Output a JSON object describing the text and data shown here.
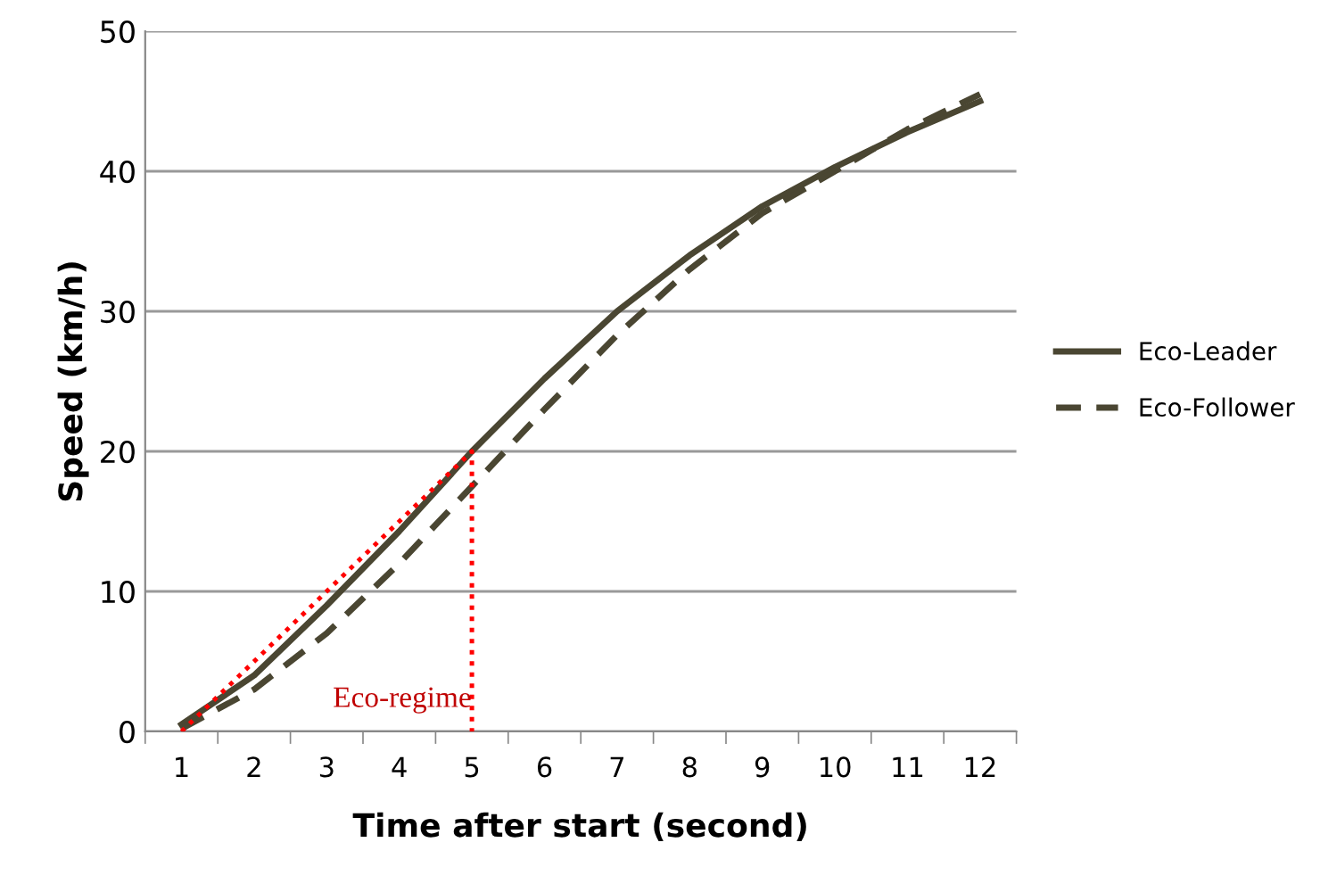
{
  "chart_data": {
    "type": "line",
    "xlabel": "Time after start (second)",
    "ylabel": "Speed (km/h)",
    "categories": [
      "1",
      "2",
      "3",
      "4",
      "5",
      "6",
      "7",
      "8",
      "9",
      "10",
      "11",
      "12"
    ],
    "series": [
      {
        "name": "Eco-Leader",
        "color": "#4a4632",
        "line_style": "solid",
        "values": [
          0.5,
          4,
          9,
          14.3,
          20,
          25.2,
          30,
          34,
          37.5,
          40.3,
          42.8,
          45
        ]
      },
      {
        "name": "Eco-Follower",
        "color": "#4a4632",
        "line_style": "dashed",
        "values": [
          0.2,
          3,
          7,
          12,
          17.5,
          23,
          28.3,
          33,
          37,
          40,
          43,
          45.5
        ]
      },
      {
        "color": "#ff0000",
        "line_style": "dotted",
        "x": [
          "1",
          "5",
          "5"
        ],
        "values": [
          0,
          20,
          0
        ]
      }
    ],
    "annotations": [
      "Eco-regime"
    ],
    "ylim": [
      0,
      50
    ],
    "yticks": [
      0,
      10,
      20,
      30,
      40,
      50
    ],
    "grid": "y",
    "legend": "right",
    "marker": "none"
  }
}
